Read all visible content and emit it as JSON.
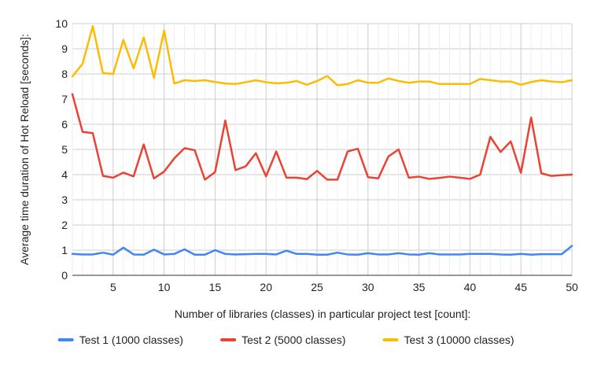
{
  "chart_data": {
    "type": "line",
    "title": "",
    "xlabel": "Number of libraries (classes) in particular project test [count]:",
    "ylabel": "Average time duration of Hot Reload [seconds]:",
    "xlim": [
      1,
      50
    ],
    "ylim": [
      0,
      10
    ],
    "xticks": [
      5,
      10,
      15,
      20,
      25,
      30,
      35,
      40,
      45,
      50
    ],
    "yticks": [
      0,
      1,
      2,
      3,
      4,
      5,
      6,
      7,
      8,
      9,
      10
    ],
    "grid": true,
    "legend_position": "bottom",
    "x": [
      1,
      2,
      3,
      4,
      5,
      6,
      7,
      8,
      9,
      10,
      11,
      12,
      13,
      14,
      15,
      16,
      17,
      18,
      19,
      20,
      21,
      22,
      23,
      24,
      25,
      26,
      27,
      28,
      29,
      30,
      31,
      32,
      33,
      34,
      35,
      36,
      37,
      38,
      39,
      40,
      41,
      42,
      43,
      44,
      45,
      46,
      47,
      48,
      49,
      50
    ],
    "series": [
      {
        "name": "Test 1 (1000 classes)",
        "color": "#4285f4",
        "values": [
          0.85,
          0.83,
          0.83,
          0.9,
          0.82,
          1.1,
          0.83,
          0.82,
          1.02,
          0.83,
          0.85,
          1.03,
          0.82,
          0.82,
          1.0,
          0.85,
          0.83,
          0.84,
          0.85,
          0.85,
          0.83,
          0.98,
          0.85,
          0.85,
          0.82,
          0.82,
          0.9,
          0.83,
          0.82,
          0.88,
          0.83,
          0.83,
          0.88,
          0.83,
          0.82,
          0.88,
          0.83,
          0.83,
          0.83,
          0.85,
          0.85,
          0.85,
          0.83,
          0.82,
          0.85,
          0.82,
          0.84,
          0.84,
          0.84,
          1.17
        ]
      },
      {
        "name": "Test 2 (5000 classes)",
        "color": "#ea4335",
        "values": [
          7.2,
          5.7,
          5.65,
          3.95,
          3.88,
          4.08,
          3.93,
          5.2,
          3.85,
          4.12,
          4.65,
          5.05,
          4.97,
          3.8,
          4.1,
          6.15,
          4.18,
          4.33,
          4.85,
          3.93,
          4.92,
          3.88,
          3.88,
          3.82,
          4.15,
          3.8,
          3.8,
          4.92,
          5.03,
          3.9,
          3.85,
          4.72,
          5.0,
          3.88,
          3.92,
          3.83,
          3.87,
          3.92,
          3.88,
          3.83,
          4.0,
          5.5,
          4.9,
          5.32,
          4.07,
          6.27,
          4.05,
          3.95,
          3.98,
          4.0
        ]
      },
      {
        "name": "Test 3 (10000 classes)",
        "color": "#fbbc04",
        "values": [
          7.9,
          8.4,
          9.9,
          8.03,
          8.0,
          9.35,
          8.22,
          9.45,
          7.85,
          9.72,
          7.62,
          7.75,
          7.72,
          7.75,
          7.68,
          7.62,
          7.6,
          7.67,
          7.75,
          7.67,
          7.63,
          7.65,
          7.72,
          7.57,
          7.72,
          7.92,
          7.55,
          7.6,
          7.75,
          7.65,
          7.65,
          7.82,
          7.72,
          7.65,
          7.7,
          7.7,
          7.6,
          7.6,
          7.6,
          7.6,
          7.8,
          7.75,
          7.7,
          7.7,
          7.57,
          7.68,
          7.75,
          7.7,
          7.67,
          7.75
        ]
      }
    ]
  }
}
